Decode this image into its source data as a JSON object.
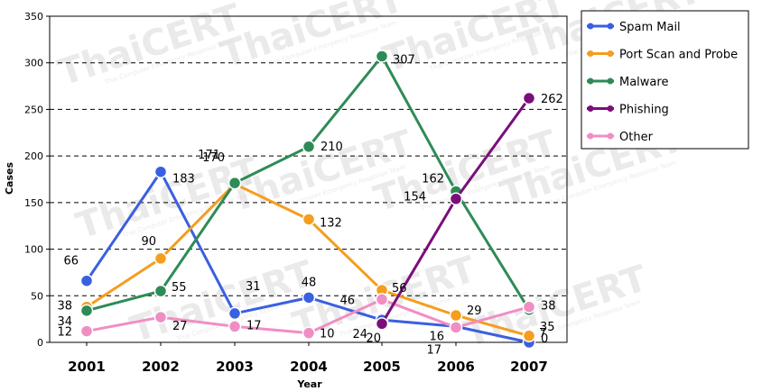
{
  "chart_data": {
    "type": "line",
    "title": "",
    "xlabel": "Year",
    "ylabel": "Cases",
    "x": [
      "2001",
      "2002",
      "2003",
      "2004",
      "2005",
      "2006",
      "2007"
    ],
    "ylim": [
      0,
      350
    ],
    "yticks": [
      "0",
      "50",
      "100",
      "150",
      "200",
      "250",
      "300",
      "350"
    ],
    "grid": "dashed horizontal",
    "legend_position": "right",
    "series": [
      {
        "name": "Spam Mail",
        "color": "#3a5fe0",
        "x": [
          "2001",
          "2002",
          "2003",
          "2004",
          "2005",
          "2006",
          "2007"
        ],
        "values": [
          66,
          183,
          31,
          48,
          24,
          17,
          0
        ],
        "labels": [
          "66",
          "183",
          "31",
          "48",
          "24",
          "17",
          "0"
        ]
      },
      {
        "name": "Port Scan and Probe",
        "color": "#f59d1e",
        "x": [
          "2001",
          "2002",
          "2003",
          "2004",
          "2005",
          "2006",
          "2007"
        ],
        "values": [
          38,
          90,
          170,
          132,
          56,
          29,
          7
        ],
        "labels": [
          "38",
          "90",
          "170",
          "132",
          "56",
          "29",
          "7"
        ]
      },
      {
        "name": "Malware",
        "color": "#2e8b57",
        "x": [
          "2001",
          "2002",
          "2003",
          "2004",
          "2005",
          "2006",
          "2007"
        ],
        "values": [
          34,
          55,
          171,
          210,
          307,
          162,
          35
        ],
        "labels": [
          "34",
          "55",
          "171",
          "210",
          "307",
          "162",
          "35"
        ]
      },
      {
        "name": "Phishing",
        "color": "#7a0f7a",
        "x": [
          "2005",
          "2006",
          "2007"
        ],
        "values": [
          20,
          154,
          262
        ],
        "labels": [
          "20",
          "154",
          "262"
        ]
      },
      {
        "name": "Other",
        "color": "#f08ec4",
        "x": [
          "2001",
          "2002",
          "2003",
          "2004",
          "2005",
          "2006",
          "2007"
        ],
        "values": [
          12,
          27,
          17,
          10,
          46,
          16,
          38
        ],
        "labels": [
          "12",
          "27",
          "17",
          "10",
          "46",
          "16",
          "38"
        ]
      }
    ],
    "watermark": {
      "text": "ThaiCERT",
      "subtext": "Thai Computer Emergency Response Team"
    }
  }
}
